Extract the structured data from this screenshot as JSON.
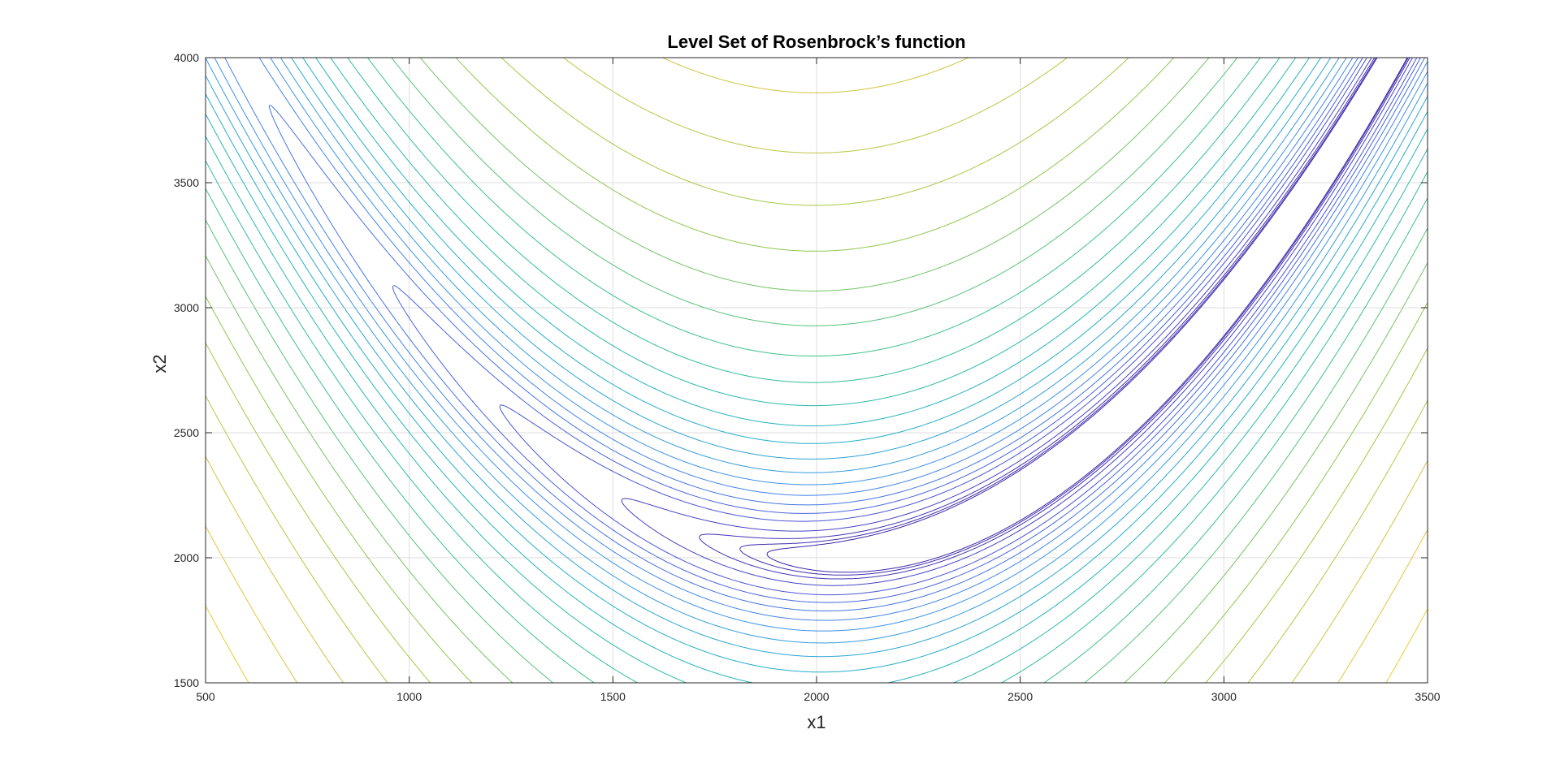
{
  "chart_data": {
    "type": "contour",
    "title": "Level Set of Rosenbrock’s function",
    "xlabel": "x1",
    "ylabel": "x2",
    "xlim": [
      500,
      3500
    ],
    "ylim": [
      1500,
      4000
    ],
    "xticks": [
      "500",
      "1000",
      "1500",
      "2000",
      "2500",
      "3000",
      "3500"
    ],
    "yticks": [
      "1500",
      "2000",
      "2500",
      "3000",
      "3500",
      "4000"
    ],
    "grid": true,
    "colormap": "parula",
    "colormap_stops": [
      "#3e26a8",
      "#4a56d6",
      "#3e8fea",
      "#1fb0c6",
      "#35c08f",
      "#97c844",
      "#e4c23b",
      "#f9e51c",
      "#f9fb0e"
    ],
    "function": {
      "name": "Rosenbrock",
      "center": [
        2000,
        2000
      ],
      "scale": 1000,
      "a": 1,
      "b": 100
    },
    "levels": [
      0.1,
      0.15,
      0.22,
      0.34,
      0.5,
      0.62,
      0.74,
      0.86,
      0.98,
      1.1,
      1.22,
      1.34,
      1.46,
      1.58,
      1.7,
      1.82,
      1.94,
      2.06,
      2.18,
      2.3,
      2.42,
      2.54,
      2.66,
      2.78,
      2.9,
      3.02,
      3.14,
      3.26,
      3.38,
      3.5
    ]
  }
}
